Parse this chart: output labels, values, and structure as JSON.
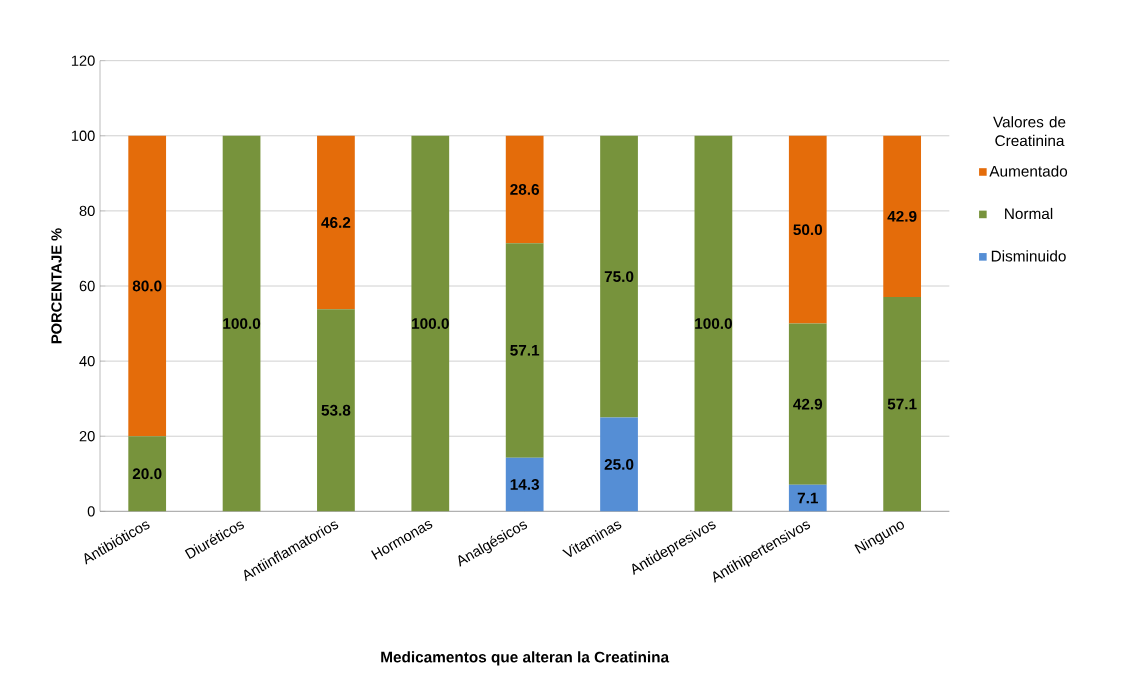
{
  "chart_data": {
    "type": "bar",
    "stacked": true,
    "xlabel": "Medicamentos que alteran la Creatinina",
    "ylabel": "PORCENTAJE %",
    "legend_title": "Valores de Creatinina",
    "categories": [
      "Antibióticos",
      "Diuréticos",
      "Antiinflamatorios",
      "Hormonas",
      "Analgésicos",
      "Vitaminas",
      "Antidepresivos",
      "Antihipertensivos",
      "Ninguno"
    ],
    "series": [
      {
        "name": "Disminuido",
        "color": "#558ed5",
        "values": [
          null,
          null,
          null,
          null,
          14.3,
          25.0,
          null,
          7.1,
          null
        ],
        "value_labels": [
          null,
          null,
          null,
          null,
          "14.3",
          "25.0",
          null,
          "7.1",
          null
        ]
      },
      {
        "name": "Normal",
        "color": "#77933c",
        "values": [
          20.0,
          100.0,
          53.8,
          100.0,
          57.1,
          75.0,
          100.0,
          42.9,
          57.1
        ],
        "value_labels": [
          "20.0",
          "100.0",
          "53.8",
          "100.0",
          "57.1",
          "75.0",
          "100.0",
          "42.9",
          "57.1"
        ]
      },
      {
        "name": "Aumentado",
        "color": "#e46c0a",
        "values": [
          80.0,
          null,
          46.2,
          null,
          28.6,
          null,
          null,
          50.0,
          42.9
        ],
        "value_labels": [
          "80.0",
          null,
          "46.2",
          null,
          "28.6",
          null,
          null,
          "50.0",
          "42.9"
        ]
      }
    ],
    "ylim": [
      0,
      120
    ],
    "yticks": [
      0,
      20,
      40,
      60,
      80,
      100,
      120
    ],
    "grid": "y",
    "legend": "right"
  }
}
